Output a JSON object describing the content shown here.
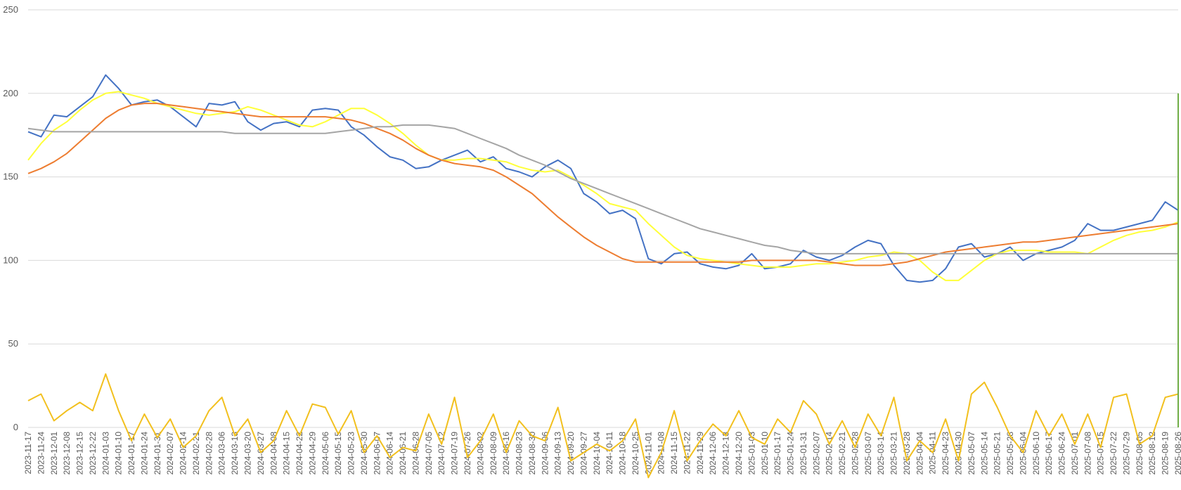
{
  "chart_data": {
    "type": "line",
    "title": "",
    "xlabel": "",
    "ylabel": "",
    "ylim": [
      0,
      250
    ],
    "yticks": [
      "0",
      "50",
      "100",
      "150",
      "200",
      "250"
    ],
    "grid": true,
    "legend": "none",
    "x_tick_labels": [
      "2023-11-17",
      "2023-11-24",
      "2023-12-01",
      "2023-12-08",
      "2023-12-15",
      "2023-12-22",
      "2024-01-03",
      "2024-01-10",
      "2024-01-17",
      "2024-01-24",
      "2024-01-31",
      "2024-02-07",
      "2024-02-14",
      "2024-02-21",
      "2024-02-28",
      "2024-03-06",
      "2024-03-13",
      "2024-03-20",
      "2024-03-27",
      "2024-04-08",
      "2024-04-15",
      "2024-04-22",
      "2024-04-29",
      "2024-05-06",
      "2024-05-15",
      "2024-05-23",
      "2024-05-30",
      "2024-06-07",
      "2024-06-14",
      "2024-06-21",
      "2024-06-28",
      "2024-07-05",
      "2024-07-12",
      "2024-07-19",
      "2024-07-26",
      "2024-08-02",
      "2024-08-09",
      "2024-08-16",
      "2024-08-23",
      "2024-08-30",
      "2024-09-06",
      "2024-09-13",
      "2024-09-20",
      "2024-09-27",
      "2024-10-04",
      "2024-10-11",
      "2024-10-18",
      "2024-10-25",
      "2024-11-01",
      "2024-11-08",
      "2024-11-15",
      "2024-11-22",
      "2024-11-29",
      "2024-12-06",
      "2024-12-13",
      "2024-12-20",
      "2025-01-03",
      "2025-01-10",
      "2025-01-17",
      "2025-01-24",
      "2025-01-31",
      "2025-02-07",
      "2025-02-14",
      "2025-02-21",
      "2025-02-28",
      "2025-03-07",
      "2025-03-14",
      "2025-03-21",
      "2025-03-28",
      "2025-04-04",
      "2025-04-11",
      "2025-04-23",
      "2025-04-30",
      "2025-05-07",
      "2025-05-14",
      "2025-05-21",
      "2025-05-28",
      "2025-06-04",
      "2025-06-10",
      "2025-06-17",
      "2025-06-24",
      "2025-07-01",
      "2025-07-08",
      "2025-07-15",
      "2025-07-22",
      "2025-07-29",
      "2025-08-05",
      "2025-08-12",
      "2025-08-19",
      "2025-08-26"
    ],
    "x_range": [
      0,
      89
    ],
    "series": [
      {
        "color": "#4472c4",
        "x": [
          0,
          1,
          2,
          3,
          4,
          5,
          6,
          7,
          8,
          9,
          10,
          11,
          12,
          13,
          14,
          15,
          16,
          17,
          18,
          19,
          20,
          21,
          22,
          23,
          24,
          25,
          26,
          27,
          28,
          29,
          30,
          31,
          32,
          33,
          34,
          35,
          36,
          37,
          38,
          39,
          40,
          41,
          42,
          43,
          44,
          45,
          46,
          47,
          48,
          49,
          50,
          51,
          52,
          53,
          54,
          55,
          56,
          57,
          58,
          59,
          60,
          61,
          62,
          63,
          64,
          65,
          66,
          67,
          68,
          69,
          70,
          71,
          72,
          73,
          74,
          75,
          76,
          77,
          78,
          79,
          80,
          81,
          82,
          83,
          84,
          85,
          86,
          87,
          88,
          89
        ],
        "values": [
          177,
          174,
          187,
          186,
          192,
          198,
          211,
          203,
          193,
          195,
          196,
          192,
          186,
          180,
          194,
          193,
          195,
          183,
          178,
          182,
          183,
          180,
          190,
          191,
          190,
          180,
          175,
          168,
          162,
          160,
          155,
          156,
          160,
          163,
          166,
          159,
          162,
          155,
          153,
          150,
          156,
          160,
          155,
          140,
          135,
          128,
          130,
          125,
          101,
          98,
          104,
          105,
          98,
          96,
          95,
          97,
          104,
          95,
          96,
          98,
          106,
          102,
          100,
          103,
          108,
          112,
          110,
          97,
          88,
          87,
          88,
          95,
          108,
          110,
          102,
          104,
          108,
          100,
          104,
          106,
          108,
          112,
          122,
          118,
          118,
          120,
          122,
          124,
          135,
          130
        ]
      },
      {
        "color": "#ffff3a",
        "x": [
          0,
          1,
          2,
          3,
          4,
          5,
          6,
          7,
          8,
          9,
          10,
          11,
          12,
          13,
          14,
          15,
          16,
          17,
          18,
          19,
          20,
          21,
          22,
          23,
          24,
          25,
          26,
          27,
          28,
          29,
          30,
          31,
          32,
          33,
          34,
          35,
          36,
          37,
          38,
          39,
          40,
          41,
          42,
          43,
          44,
          45,
          46,
          47,
          48,
          49,
          50,
          51,
          52,
          53,
          54,
          55,
          56,
          57,
          58,
          59,
          60,
          61,
          62,
          63,
          64,
          65,
          66,
          67,
          68,
          69,
          70,
          71,
          72,
          73,
          74,
          75,
          76,
          77,
          78,
          79,
          80,
          81,
          82,
          83,
          84,
          85,
          86,
          87,
          88,
          89
        ],
        "values": [
          160,
          170,
          178,
          183,
          190,
          196,
          200,
          201,
          199,
          197,
          194,
          192,
          190,
          188,
          187,
          188,
          189,
          192,
          190,
          187,
          184,
          181,
          180,
          183,
          187,
          191,
          191,
          187,
          182,
          176,
          169,
          163,
          160,
          160,
          161,
          161,
          160,
          159,
          156,
          154,
          153,
          154,
          150,
          145,
          140,
          134,
          132,
          130,
          122,
          115,
          108,
          103,
          101,
          100,
          99,
          98,
          97,
          96,
          96,
          96,
          97,
          98,
          98,
          99,
          100,
          102,
          103,
          105,
          104,
          100,
          93,
          88,
          88,
          94,
          100,
          104,
          106,
          106,
          106,
          105,
          105,
          105,
          104,
          108,
          112,
          115,
          117,
          118,
          120,
          123
        ]
      },
      {
        "color": "#ed7d31",
        "x": [
          0,
          1,
          2,
          3,
          4,
          5,
          6,
          7,
          8,
          9,
          10,
          11,
          12,
          13,
          14,
          15,
          16,
          17,
          18,
          19,
          20,
          21,
          22,
          23,
          24,
          25,
          26,
          27,
          28,
          29,
          30,
          31,
          32,
          33,
          34,
          35,
          36,
          37,
          38,
          39,
          40,
          41,
          42,
          43,
          44,
          45,
          46,
          47,
          48,
          49,
          50,
          51,
          52,
          53,
          54,
          55,
          56,
          57,
          58,
          59,
          60,
          61,
          62,
          63,
          64,
          65,
          66,
          67,
          68,
          69,
          70,
          71,
          72,
          73,
          74,
          75,
          76,
          77,
          78,
          79,
          80,
          81,
          82,
          83,
          84,
          85,
          86,
          87,
          88,
          89
        ],
        "values": [
          152,
          155,
          159,
          164,
          171,
          178,
          185,
          190,
          193,
          194,
          194,
          193,
          192,
          191,
          190,
          189,
          188,
          187,
          186,
          186,
          186,
          186,
          186,
          186,
          185,
          184,
          182,
          179,
          176,
          172,
          167,
          163,
          160,
          158,
          157,
          156,
          154,
          150,
          145,
          140,
          133,
          126,
          120,
          114,
          109,
          105,
          101,
          99,
          99,
          99,
          99,
          99,
          99,
          99,
          99,
          99,
          100,
          100,
          100,
          100,
          100,
          100,
          99,
          98,
          97,
          97,
          97,
          98,
          99,
          101,
          103,
          105,
          106,
          107,
          108,
          109,
          110,
          111,
          111,
          112,
          113,
          114,
          115,
          116,
          117,
          118,
          119,
          120,
          121,
          122
        ]
      },
      {
        "color": "#a5a5a5",
        "x": [
          0,
          1,
          2,
          3,
          4,
          5,
          6,
          7,
          8,
          9,
          10,
          11,
          12,
          13,
          14,
          15,
          16,
          17,
          18,
          19,
          20,
          21,
          22,
          23,
          24,
          25,
          26,
          27,
          28,
          29,
          30,
          31,
          32,
          33,
          34,
          35,
          36,
          37,
          38,
          39,
          40,
          41,
          42,
          43,
          44,
          45,
          46,
          47,
          48,
          49,
          50,
          51,
          52,
          53,
          54,
          55,
          56,
          57,
          58,
          59,
          60,
          61,
          62,
          63,
          64,
          65,
          66,
          67,
          68,
          69,
          70,
          71,
          72,
          73,
          74,
          75,
          76,
          77,
          78,
          79,
          80,
          81,
          82,
          83,
          84,
          85,
          86,
          87,
          88,
          89
        ],
        "values": [
          179,
          178,
          177,
          177,
          177,
          177,
          177,
          177,
          177,
          177,
          177,
          177,
          177,
          177,
          177,
          177,
          176,
          176,
          176,
          176,
          176,
          176,
          176,
          176,
          177,
          178,
          179,
          180,
          180,
          181,
          181,
          181,
          180,
          179,
          176,
          173,
          170,
          167,
          163,
          160,
          157,
          153,
          149,
          146,
          143,
          140,
          137,
          134,
          131,
          128,
          125,
          122,
          119,
          117,
          115,
          113,
          111,
          109,
          108,
          106,
          105,
          104,
          104,
          104,
          104,
          104,
          104,
          104,
          104,
          104,
          104,
          104,
          104,
          104,
          104,
          104,
          104,
          104,
          104,
          104,
          104,
          104,
          104,
          104,
          104,
          104,
          104,
          104,
          104,
          104
        ]
      },
      {
        "color": "#f2c01e",
        "x": [
          0,
          1,
          2,
          3,
          4,
          5,
          6,
          7,
          8,
          9,
          10,
          11,
          12,
          13,
          14,
          15,
          16,
          17,
          18,
          19,
          20,
          21,
          22,
          23,
          24,
          25,
          26,
          27,
          28,
          29,
          30,
          31,
          32,
          33,
          34,
          35,
          36,
          37,
          38,
          39,
          40,
          41,
          42,
          43,
          44,
          45,
          46,
          47,
          48,
          49,
          50,
          51,
          52,
          53,
          54,
          55,
          56,
          57,
          58,
          59,
          60,
          61,
          62,
          63,
          64,
          65,
          66,
          67,
          68,
          69,
          70,
          71,
          72,
          73,
          74,
          75,
          76,
          77,
          78,
          79,
          80,
          81,
          82,
          83,
          84,
          85,
          86,
          87,
          88,
          89
        ],
        "values": [
          16,
          20,
          4,
          10,
          15,
          10,
          32,
          10,
          -8,
          8,
          -6,
          5,
          -12,
          -5,
          10,
          18,
          -5,
          5,
          -15,
          -8,
          10,
          -5,
          14,
          12,
          -4,
          10,
          -15,
          -5,
          -18,
          -12,
          -14,
          8,
          -10,
          18,
          -18,
          -8,
          8,
          -15,
          4,
          -5,
          -8,
          12,
          -20,
          -15,
          -10,
          -14,
          -8,
          5,
          -30,
          -15,
          10,
          -20,
          -8,
          2,
          -5,
          10,
          -6,
          -10,
          5,
          -3,
          16,
          8,
          -10,
          4,
          -12,
          8,
          -5,
          18,
          -20,
          -8,
          -15,
          5,
          -20,
          20,
          27,
          12,
          -5,
          -15,
          10,
          -5,
          8,
          -10,
          8,
          -12,
          18,
          20,
          -10,
          -5,
          18,
          20
        ]
      },
      {
        "color": "#70ad47",
        "x": [
          89,
          89
        ],
        "values": [
          0,
          200
        ]
      }
    ]
  }
}
